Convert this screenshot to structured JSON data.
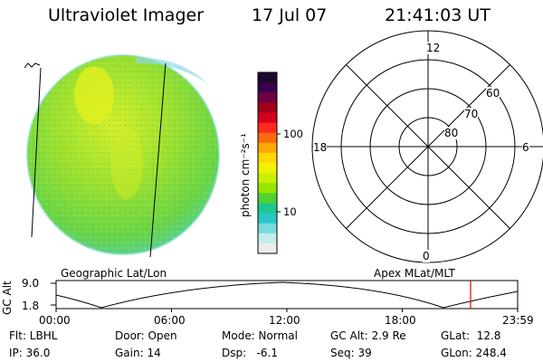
{
  "header": {
    "title": "Ultraviolet Imager",
    "date": "17 Jul 07",
    "time": "21:41:03 UT"
  },
  "colorbar": {
    "unit_label": "photon cm⁻²s⁻¹",
    "tick_labels": [
      "100",
      "10"
    ],
    "colors": [
      "#1a0a2e",
      "#3a0050",
      "#6e0040",
      "#a0001a",
      "#d2001e",
      "#ff2a1e",
      "#ff6a10",
      "#ffa800",
      "#ffd800",
      "#f2f200",
      "#c8f000",
      "#96e600",
      "#50d232",
      "#1ec88c",
      "#28c8c8",
      "#78dcdc",
      "#c3ebeb",
      "#ececec"
    ]
  },
  "polar_plot": {
    "mlt_labels": [
      "12",
      "18",
      "6",
      "0"
    ],
    "mlat_labels": [
      "60",
      "70",
      "80"
    ]
  },
  "timeline": {
    "ylabel": "GC Alt",
    "ymax": "9.0",
    "ymin": "1.8",
    "left_title": "Geographic Lat/Lon",
    "right_title": "Apex MLat/MLT",
    "x_labels": [
      "00:00",
      "06:00",
      "12:00",
      "18:00",
      "23:59"
    ],
    "marker_color": "#e00000"
  },
  "status": {
    "flt": "Flt: LBHL",
    "door": "Door: Open",
    "mode": "Mode: Normal",
    "gc_alt": "GC Alt: 2.9 Re",
    "glat": "GLat:  12.8",
    "ip": "IP: 36.0",
    "gain": "Gain: 14",
    "dsp": "Dsp:   -6.1",
    "seq": "Seq: 39",
    "glon": "GLon: 248.4"
  }
}
